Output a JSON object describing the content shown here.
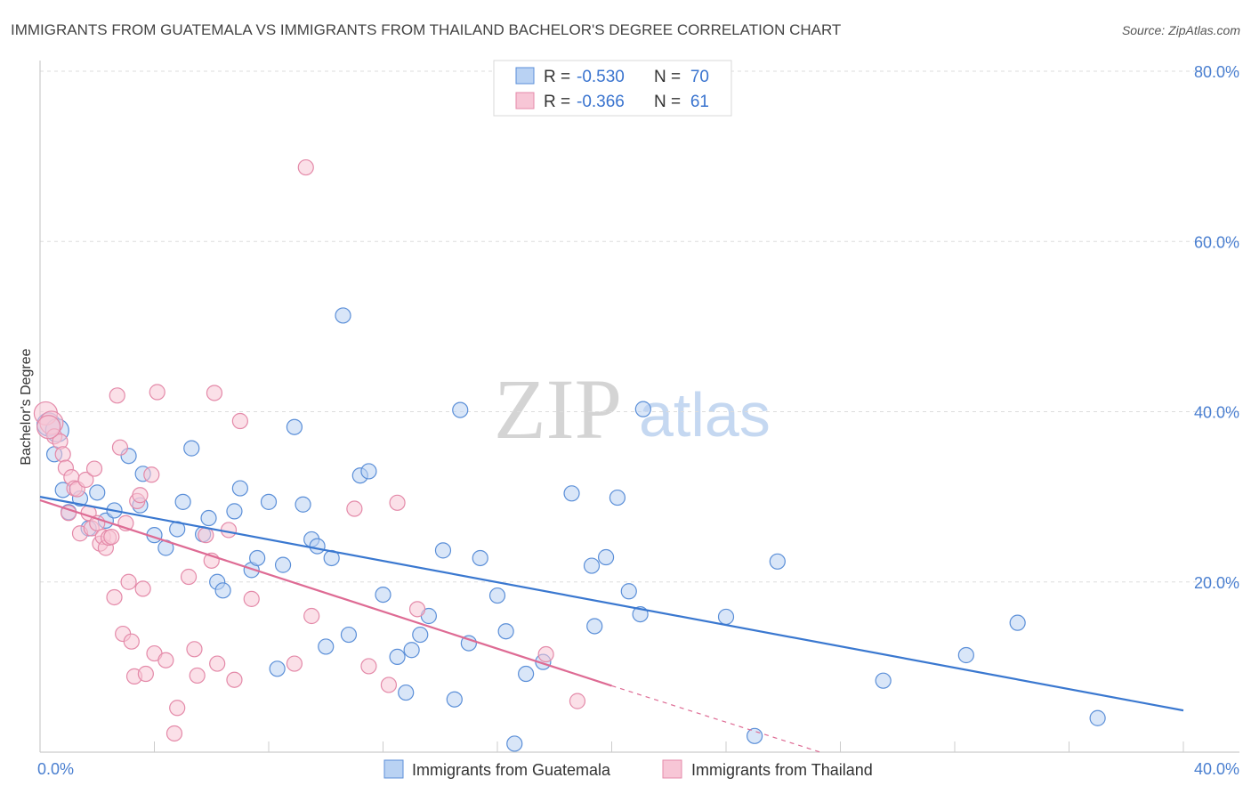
{
  "chart_data": {
    "type": "scatter",
    "title": "IMMIGRANTS FROM GUATEMALA VS IMMIGRANTS FROM THAILAND BACHELOR'S DEGREE CORRELATION CHART",
    "source": "Source: ZipAtlas.com",
    "ylabel": "Bachelor's Degree",
    "xlabel": "",
    "xlim": [
      0,
      40
    ],
    "ylim": [
      0,
      80
    ],
    "y_ticks": [
      {
        "value": 20,
        "label": "20.0%"
      },
      {
        "value": 40,
        "label": "40.0%"
      },
      {
        "value": 60,
        "label": "60.0%"
      },
      {
        "value": 80,
        "label": "80.0%"
      }
    ],
    "x_ticks": [
      {
        "value": 0,
        "label": "0.0%"
      },
      {
        "value": 40,
        "label": "40.0%"
      }
    ],
    "legend": {
      "r_label": "R =",
      "n_label": "N =",
      "entries": [
        {
          "r": "-0.530",
          "n": "70"
        },
        {
          "r": "-0.366",
          "n": "61"
        }
      ]
    },
    "watermark": {
      "zip": "ZIP",
      "atlas": "atlas"
    },
    "series": [
      {
        "name": "Immigrants from Guatemala",
        "color": "#5b8fd8",
        "fill": "#b9d2f3",
        "line_color": "#3a78d0",
        "trend": {
          "x0": 0,
          "y0": 30.0,
          "x1": 40,
          "y1": 4.9
        },
        "points": [
          [
            0.3,
            38.5
          ],
          [
            0.5,
            35.0
          ],
          [
            0.8,
            30.8
          ],
          [
            1.0,
            28.2
          ],
          [
            1.4,
            29.8
          ],
          [
            1.7,
            26.3
          ],
          [
            2.0,
            30.5
          ],
          [
            2.3,
            27.2
          ],
          [
            2.6,
            28.4
          ],
          [
            3.1,
            34.8
          ],
          [
            3.5,
            29.0
          ],
          [
            3.6,
            32.7
          ],
          [
            4.0,
            25.5
          ],
          [
            4.4,
            24.0
          ],
          [
            4.8,
            26.2
          ],
          [
            5.0,
            29.4
          ],
          [
            5.3,
            35.7
          ],
          [
            5.7,
            25.6
          ],
          [
            5.9,
            27.5
          ],
          [
            6.2,
            20.0
          ],
          [
            6.4,
            19.0
          ],
          [
            6.8,
            28.3
          ],
          [
            7.0,
            31.0
          ],
          [
            7.4,
            21.4
          ],
          [
            7.6,
            22.8
          ],
          [
            8.0,
            29.4
          ],
          [
            8.3,
            9.8
          ],
          [
            8.5,
            22.0
          ],
          [
            8.9,
            38.2
          ],
          [
            9.2,
            29.1
          ],
          [
            9.5,
            25.0
          ],
          [
            9.7,
            24.2
          ],
          [
            10.0,
            12.4
          ],
          [
            10.2,
            22.8
          ],
          [
            10.6,
            51.3
          ],
          [
            10.8,
            13.8
          ],
          [
            11.2,
            32.5
          ],
          [
            11.5,
            33.0
          ],
          [
            12.0,
            18.5
          ],
          [
            12.5,
            11.2
          ],
          [
            12.8,
            7.0
          ],
          [
            13.0,
            12.0
          ],
          [
            13.3,
            13.8
          ],
          [
            13.6,
            16.0
          ],
          [
            14.1,
            23.7
          ],
          [
            14.5,
            6.2
          ],
          [
            14.7,
            40.2
          ],
          [
            15.0,
            12.8
          ],
          [
            15.4,
            22.8
          ],
          [
            16.0,
            18.4
          ],
          [
            16.3,
            14.2
          ],
          [
            16.6,
            1.0
          ],
          [
            17.0,
            9.2
          ],
          [
            17.6,
            10.6
          ],
          [
            18.6,
            30.4
          ],
          [
            19.3,
            21.9
          ],
          [
            19.4,
            14.8
          ],
          [
            19.8,
            22.9
          ],
          [
            20.2,
            29.9
          ],
          [
            20.6,
            18.9
          ],
          [
            21.0,
            16.2
          ],
          [
            21.1,
            40.3
          ],
          [
            24.0,
            15.9
          ],
          [
            25.0,
            1.9
          ],
          [
            25.8,
            22.4
          ],
          [
            29.5,
            8.4
          ],
          [
            32.4,
            11.4
          ],
          [
            34.2,
            15.2
          ],
          [
            37.0,
            4.0
          ],
          [
            0.6,
            37.8
          ]
        ]
      },
      {
        "name": "Immigrants from Thailand",
        "color": "#e48aa9",
        "fill": "#f7c6d6",
        "line_color": "#de6b94",
        "trend": {
          "x0": 0,
          "y0": 29.6,
          "x1": 20,
          "y1": 7.8
        },
        "trend_dash": {
          "x0": 20,
          "y0": 7.8,
          "x1": 27.3,
          "y1": 0
        },
        "points": [
          [
            0.2,
            39.8
          ],
          [
            0.4,
            38.7
          ],
          [
            0.5,
            37.1
          ],
          [
            0.7,
            36.5
          ],
          [
            0.8,
            35.0
          ],
          [
            0.9,
            33.4
          ],
          [
            1.0,
            28.1
          ],
          [
            1.1,
            32.3
          ],
          [
            1.2,
            31.0
          ],
          [
            1.3,
            30.9
          ],
          [
            1.4,
            25.7
          ],
          [
            1.6,
            32.0
          ],
          [
            1.7,
            28.1
          ],
          [
            1.8,
            26.3
          ],
          [
            1.9,
            33.3
          ],
          [
            2.0,
            26.9
          ],
          [
            2.1,
            24.5
          ],
          [
            2.2,
            25.3
          ],
          [
            2.3,
            24.0
          ],
          [
            2.4,
            25.2
          ],
          [
            2.5,
            25.3
          ],
          [
            2.6,
            18.2
          ],
          [
            2.7,
            41.9
          ],
          [
            2.8,
            35.8
          ],
          [
            2.9,
            13.9
          ],
          [
            3.0,
            26.9
          ],
          [
            3.1,
            20.0
          ],
          [
            3.2,
            13.0
          ],
          [
            3.3,
            8.9
          ],
          [
            3.4,
            29.5
          ],
          [
            3.5,
            30.2
          ],
          [
            3.6,
            19.2
          ],
          [
            3.7,
            9.2
          ],
          [
            3.9,
            32.6
          ],
          [
            4.0,
            11.6
          ],
          [
            4.1,
            42.3
          ],
          [
            4.4,
            10.8
          ],
          [
            4.7,
            2.2
          ],
          [
            4.8,
            5.2
          ],
          [
            5.2,
            20.6
          ],
          [
            5.4,
            12.1
          ],
          [
            5.5,
            9.0
          ],
          [
            5.8,
            25.5
          ],
          [
            6.0,
            22.5
          ],
          [
            6.1,
            42.2
          ],
          [
            6.2,
            10.4
          ],
          [
            6.6,
            26.1
          ],
          [
            6.8,
            8.5
          ],
          [
            7.0,
            38.9
          ],
          [
            7.4,
            18.0
          ],
          [
            8.9,
            10.4
          ],
          [
            9.3,
            68.7
          ],
          [
            9.5,
            16.0
          ],
          [
            11.0,
            28.6
          ],
          [
            11.5,
            10.1
          ],
          [
            12.2,
            7.9
          ],
          [
            12.5,
            29.3
          ],
          [
            13.2,
            16.8
          ],
          [
            17.7,
            11.5
          ],
          [
            18.8,
            6.0
          ],
          [
            0.3,
            38.2
          ]
        ]
      }
    ]
  }
}
